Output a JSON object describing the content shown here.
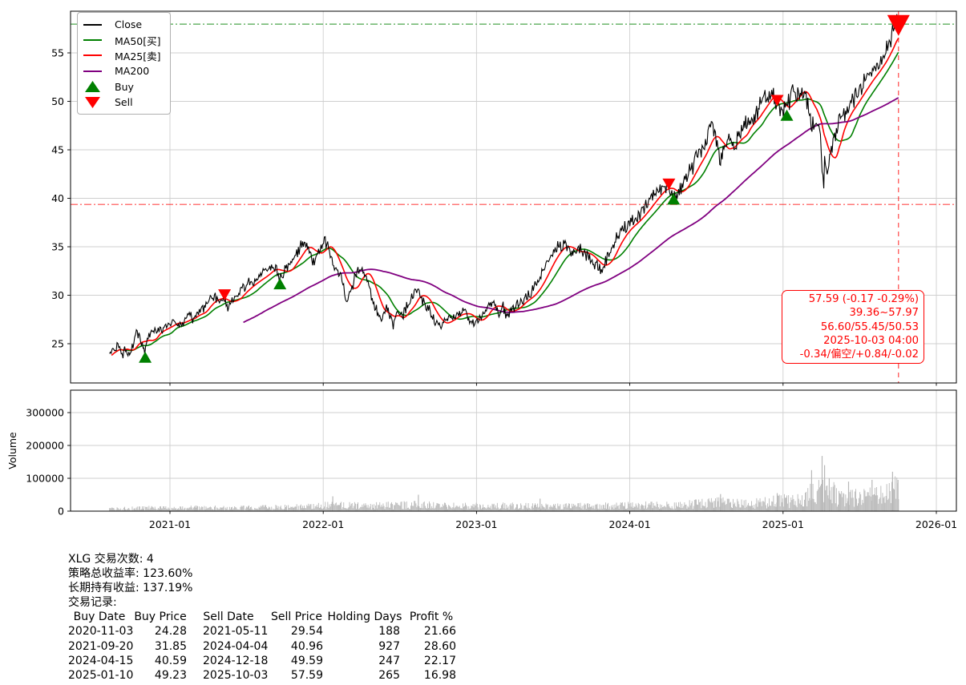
{
  "chart_data": {
    "type": "line",
    "title": "",
    "symbol": "XLG",
    "xticks": [
      "2021-01",
      "2022-01",
      "2023-01",
      "2024-01",
      "2025-01",
      "2026-01"
    ],
    "price_panel": {
      "ylim": [
        21,
        59.5
      ],
      "yticks": [
        25,
        30,
        35,
        40,
        45,
        50,
        55
      ],
      "series": [
        {
          "name": "Close",
          "color": "#000000"
        },
        {
          "name": "MA50[买]",
          "color": "#008000"
        },
        {
          "name": "MA25[卖]",
          "color": "#ff0000"
        },
        {
          "name": "MA200",
          "color": "#800080"
        }
      ],
      "close": [
        [
          "2020-08-10",
          23.6
        ],
        [
          "2020-08-20",
          24.4
        ],
        [
          "2020-09-02",
          24.9
        ],
        [
          "2020-09-10",
          23.9
        ],
        [
          "2020-09-18",
          24.6
        ],
        [
          "2020-09-24",
          23.8
        ],
        [
          "2020-10-05",
          24.9
        ],
        [
          "2020-10-12",
          26.3
        ],
        [
          "2020-10-16",
          26.0
        ],
        [
          "2020-10-23",
          25.6
        ],
        [
          "2020-10-28",
          24.6
        ],
        [
          "2020-11-03",
          24.28
        ],
        [
          "2020-11-09",
          25.4
        ],
        [
          "2020-11-16",
          26.0
        ],
        [
          "2020-11-24",
          26.3
        ],
        [
          "2020-12-04",
          26.6
        ],
        [
          "2020-12-11",
          26.2
        ],
        [
          "2020-12-21",
          26.8
        ],
        [
          "2020-12-31",
          27.1
        ],
        [
          "2021-01-08",
          27.5
        ],
        [
          "2021-01-15",
          27.2
        ],
        [
          "2021-01-29",
          26.8
        ],
        [
          "2021-02-08",
          27.9
        ],
        [
          "2021-02-16",
          28.2
        ],
        [
          "2021-02-25",
          27.5
        ],
        [
          "2021-03-04",
          27.8
        ],
        [
          "2021-03-15",
          28.6
        ],
        [
          "2021-03-26",
          28.9
        ],
        [
          "2021-04-05",
          29.6
        ],
        [
          "2021-04-16",
          29.9
        ],
        [
          "2021-04-29",
          29.5
        ],
        [
          "2021-05-11",
          29.54
        ],
        [
          "2021-05-19",
          28.9
        ],
        [
          "2021-06-01",
          29.6
        ],
        [
          "2021-06-14",
          30.3
        ],
        [
          "2021-06-28",
          30.8
        ],
        [
          "2021-07-12",
          31.3
        ],
        [
          "2021-07-26",
          31.7
        ],
        [
          "2021-08-09",
          32.1
        ],
        [
          "2021-08-23",
          32.6
        ],
        [
          "2021-09-02",
          33.2
        ],
        [
          "2021-09-10",
          32.7
        ],
        [
          "2021-09-20",
          31.85
        ],
        [
          "2021-09-28",
          32.3
        ],
        [
          "2021-10-08",
          32.9
        ],
        [
          "2021-10-20",
          33.7
        ],
        [
          "2021-11-01",
          34.5
        ],
        [
          "2021-11-12",
          35.2
        ],
        [
          "2021-11-19",
          35.7
        ],
        [
          "2021-12-01",
          34.3
        ],
        [
          "2021-12-10",
          33.4
        ],
        [
          "2021-12-20",
          34.5
        ],
        [
          "2021-12-31",
          35.6
        ],
        [
          "2022-01-04",
          35.9
        ],
        [
          "2022-01-14",
          34.9
        ],
        [
          "2022-01-24",
          33.0
        ],
        [
          "2022-02-03",
          32.4
        ],
        [
          "2022-02-15",
          31.6
        ],
        [
          "2022-02-24",
          29.7
        ],
        [
          "2022-03-08",
          30.3
        ],
        [
          "2022-03-18",
          31.9
        ],
        [
          "2022-03-29",
          33.1
        ],
        [
          "2022-04-08",
          32.3
        ],
        [
          "2022-04-21",
          31.0
        ],
        [
          "2022-04-29",
          29.4
        ],
        [
          "2022-05-11",
          28.1
        ],
        [
          "2022-05-20",
          27.3
        ],
        [
          "2022-05-31",
          28.9
        ],
        [
          "2022-06-10",
          27.7
        ],
        [
          "2022-06-16",
          26.9
        ],
        [
          "2022-06-27",
          28.1
        ],
        [
          "2022-07-08",
          27.8
        ],
        [
          "2022-07-20",
          28.9
        ],
        [
          "2022-08-01",
          29.8
        ],
        [
          "2022-08-16",
          30.7
        ],
        [
          "2022-08-26",
          29.4
        ],
        [
          "2022-09-06",
          28.8
        ],
        [
          "2022-09-16",
          28.0
        ],
        [
          "2022-09-30",
          26.9
        ],
        [
          "2022-10-12",
          26.8
        ],
        [
          "2022-10-21",
          27.4
        ],
        [
          "2022-10-28",
          28.0
        ],
        [
          "2022-11-09",
          27.7
        ],
        [
          "2022-11-22",
          28.2
        ],
        [
          "2022-12-01",
          28.5
        ],
        [
          "2022-12-15",
          27.6
        ],
        [
          "2022-12-28",
          26.9
        ],
        [
          "2023-01-06",
          27.5
        ],
        [
          "2023-01-20",
          28.4
        ],
        [
          "2023-02-02",
          29.3
        ],
        [
          "2023-02-14",
          29.0
        ],
        [
          "2023-02-24",
          28.3
        ],
        [
          "2023-03-06",
          28.7
        ],
        [
          "2023-03-13",
          27.9
        ],
        [
          "2023-03-24",
          28.3
        ],
        [
          "2023-04-06",
          29.2
        ],
        [
          "2023-04-21",
          29.5
        ],
        [
          "2023-05-04",
          29.9
        ],
        [
          "2023-05-18",
          30.6
        ],
        [
          "2023-06-01",
          31.8
        ],
        [
          "2023-06-15",
          33.1
        ],
        [
          "2023-06-30",
          34.3
        ],
        [
          "2023-07-14",
          35.0
        ],
        [
          "2023-07-27",
          35.4
        ],
        [
          "2023-08-10",
          34.6
        ],
        [
          "2023-08-24",
          34.2
        ],
        [
          "2023-09-07",
          34.8
        ],
        [
          "2023-09-21",
          34.0
        ],
        [
          "2023-10-03",
          33.5
        ],
        [
          "2023-10-16",
          33.1
        ],
        [
          "2023-10-27",
          32.5
        ],
        [
          "2023-11-10",
          34.1
        ],
        [
          "2023-11-24",
          35.3
        ],
        [
          "2023-12-08",
          36.3
        ],
        [
          "2023-12-21",
          37.0
        ],
        [
          "2024-01-03",
          37.4
        ],
        [
          "2024-01-17",
          37.9
        ],
        [
          "2024-01-31",
          38.8
        ],
        [
          "2024-02-12",
          39.4
        ],
        [
          "2024-02-23",
          40.0
        ],
        [
          "2024-03-07",
          40.8
        ],
        [
          "2024-03-21",
          41.3
        ],
        [
          "2024-04-04",
          40.96
        ],
        [
          "2024-04-15",
          40.59
        ],
        [
          "2024-04-19",
          39.9
        ],
        [
          "2024-05-02",
          41.0
        ],
        [
          "2024-05-16",
          42.4
        ],
        [
          "2024-05-31",
          43.2
        ],
        [
          "2024-06-14",
          44.6
        ],
        [
          "2024-06-28",
          45.5
        ],
        [
          "2024-07-10",
          47.0
        ],
        [
          "2024-07-16",
          47.7
        ],
        [
          "2024-07-25",
          45.9
        ],
        [
          "2024-08-05",
          43.7
        ],
        [
          "2024-08-16",
          45.3
        ],
        [
          "2024-08-30",
          46.4
        ],
        [
          "2024-09-06",
          44.9
        ],
        [
          "2024-09-19",
          46.8
        ],
        [
          "2024-10-04",
          47.6
        ],
        [
          "2024-10-18",
          48.2
        ],
        [
          "2024-11-01",
          48.9
        ],
        [
          "2024-11-11",
          50.0
        ],
        [
          "2024-11-27",
          50.7
        ],
        [
          "2024-12-06",
          50.9
        ],
        [
          "2024-12-18",
          49.59
        ],
        [
          "2024-12-30",
          48.9
        ],
        [
          "2025-01-10",
          49.23
        ],
        [
          "2025-01-24",
          51.3
        ],
        [
          "2025-02-07",
          50.7
        ],
        [
          "2025-02-19",
          51.4
        ],
        [
          "2025-02-28",
          49.9
        ],
        [
          "2025-03-10",
          47.4
        ],
        [
          "2025-03-21",
          48.3
        ],
        [
          "2025-03-31",
          46.5
        ],
        [
          "2025-04-04",
          43.2
        ],
        [
          "2025-04-08",
          41.3
        ],
        [
          "2025-04-10",
          44.1
        ],
        [
          "2025-04-16",
          42.2
        ],
        [
          "2025-04-24",
          44.9
        ],
        [
          "2025-05-02",
          46.1
        ],
        [
          "2025-05-13",
          47.8
        ],
        [
          "2025-05-27",
          48.8
        ],
        [
          "2025-06-10",
          49.7
        ],
        [
          "2025-06-24",
          50.5
        ],
        [
          "2025-07-08",
          51.7
        ],
        [
          "2025-07-22",
          52.4
        ],
        [
          "2025-08-05",
          53.2
        ],
        [
          "2025-08-19",
          54.1
        ],
        [
          "2025-09-02",
          55.2
        ],
        [
          "2025-09-12",
          56.3
        ],
        [
          "2025-09-22",
          57.3
        ],
        [
          "2025-09-29",
          57.97
        ],
        [
          "2025-10-01",
          57.1
        ],
        [
          "2025-10-03",
          57.59
        ]
      ],
      "reference_lines": {
        "high": 57.97,
        "high_color": "#008000",
        "low": 39.36,
        "low_color": "#ff0000",
        "last_date": "2025-10-03",
        "vline_color": "#ff0000"
      }
    },
    "volume_panel": {
      "ylabel": "Volume",
      "ylim": [
        0,
        368000
      ],
      "yticks": [
        0,
        100000,
        200000,
        300000
      ],
      "base": [
        [
          "2020-08-10",
          6000
        ],
        [
          "2020-11-03",
          9000
        ],
        [
          "2021-02-01",
          10000
        ],
        [
          "2021-06-01",
          9000
        ],
        [
          "2021-10-01",
          11000
        ],
        [
          "2022-01-15",
          16000
        ],
        [
          "2022-05-01",
          15000
        ],
        [
          "2022-08-15",
          18000
        ],
        [
          "2022-11-01",
          14000
        ],
        [
          "2023-02-01",
          15000
        ],
        [
          "2023-06-01",
          14000
        ],
        [
          "2023-10-01",
          14000
        ],
        [
          "2024-01-15",
          16000
        ],
        [
          "2024-05-01",
          17000
        ],
        [
          "2024-08-05",
          24000
        ],
        [
          "2024-10-15",
          20000
        ],
        [
          "2024-12-18",
          28000
        ],
        [
          "2025-02-01",
          30000
        ],
        [
          "2025-03-15",
          55000
        ],
        [
          "2025-04-10",
          70000
        ],
        [
          "2025-05-15",
          38000
        ],
        [
          "2025-07-01",
          40000
        ],
        [
          "2025-08-15",
          48000
        ],
        [
          "2025-09-15",
          58000
        ],
        [
          "2025-10-03",
          60000
        ]
      ],
      "spikes": [
        [
          "2022-01-24",
          45000
        ],
        [
          "2022-08-16",
          50000
        ],
        [
          "2023-06-02",
          38000
        ],
        [
          "2024-08-05",
          52000
        ],
        [
          "2024-12-18",
          55000
        ],
        [
          "2025-03-10",
          125000
        ],
        [
          "2025-04-04",
          168000
        ],
        [
          "2025-04-10",
          140000
        ],
        [
          "2025-04-21",
          100000
        ],
        [
          "2025-06-06",
          90000
        ],
        [
          "2025-08-01",
          95000
        ],
        [
          "2025-09-19",
          120000
        ],
        [
          "2025-10-02",
          95000
        ]
      ]
    },
    "legend": [
      {
        "key": "close",
        "type": "line",
        "color": "#000000",
        "label": "Close"
      },
      {
        "key": "ma50",
        "type": "line",
        "color": "#008000",
        "label": "MA50[买]"
      },
      {
        "key": "ma25",
        "type": "line",
        "color": "#ff0000",
        "label": "MA25[卖]"
      },
      {
        "key": "ma200",
        "type": "line",
        "color": "#800080",
        "label": "MA200"
      },
      {
        "key": "buy",
        "type": "marker",
        "shape": "triangle-up",
        "color": "#008000",
        "label": "Buy"
      },
      {
        "key": "sell",
        "type": "marker",
        "shape": "triangle-down",
        "color": "#ff0000",
        "label": "Sell"
      }
    ],
    "annotation": {
      "color": "#ff0000",
      "lines": [
        "57.59 (-0.17 -0.29%)",
        "39.36~57.97",
        "56.60/55.45/50.53",
        "2025-10-03 04:00",
        "-0.34/偏空/+0.84/-0.02"
      ]
    },
    "marker_colors": {
      "buy": "#008000",
      "sell": "#ff0000"
    }
  },
  "trades": [
    {
      "buy_date": "2020-11-03",
      "buy_price": 24.28,
      "sell_date": "2021-05-11",
      "sell_price": 29.54,
      "holding_days": 188,
      "profit_pct": 21.66
    },
    {
      "buy_date": "2021-09-20",
      "buy_price": 31.85,
      "sell_date": "2024-04-04",
      "sell_price": 40.96,
      "holding_days": 927,
      "profit_pct": 28.6
    },
    {
      "buy_date": "2024-04-15",
      "buy_price": 40.59,
      "sell_date": "2024-12-18",
      "sell_price": 49.59,
      "holding_days": 247,
      "profit_pct": 22.17
    },
    {
      "buy_date": "2025-01-10",
      "buy_price": 49.23,
      "sell_date": "2025-10-03",
      "sell_price": 57.59,
      "holding_days": 265,
      "profit_pct": 16.98
    }
  ],
  "stats": {
    "trade_count_line": "XLG 交易次数: 4",
    "strategy_return_line": "策略总收益率: 123.60%",
    "hold_return_line": "长期持有收益: 137.19%",
    "trade_log_title": "交易记录:",
    "table_headers": [
      "Buy Date",
      "Buy Price",
      "Sell Date",
      "Sell Price",
      "Holding Days",
      "Profit %"
    ]
  }
}
